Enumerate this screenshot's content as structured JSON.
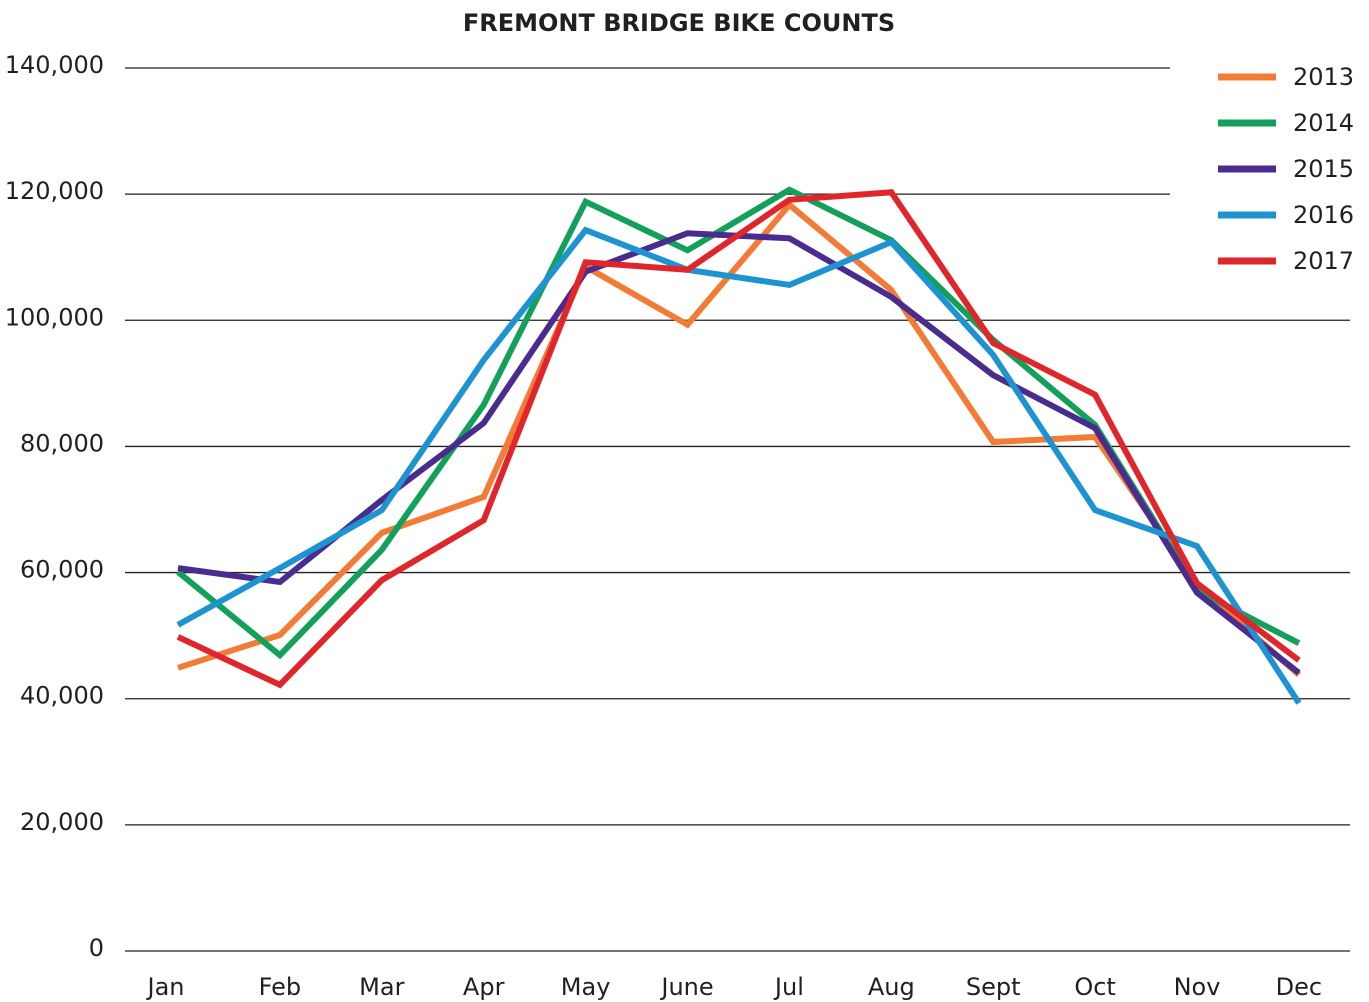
{
  "chart_data": {
    "type": "line",
    "title": "FREMONT BRIDGE BIKE COUNTS",
    "categories": [
      "Jan",
      "Feb",
      "Mar",
      "Apr",
      "May",
      "June",
      "Jul",
      "Aug",
      "Sept",
      "Oct",
      "Nov",
      "Dec"
    ],
    "series": [
      {
        "name": "2013",
        "color": "#f47b35",
        "values": [
          44900,
          50100,
          66300,
          72000,
          108500,
          99300,
          118300,
          104800,
          80700,
          81500,
          58000,
          43800
        ]
      },
      {
        "name": "2014",
        "color": "#13a05a",
        "values": [
          60100,
          46900,
          63600,
          86600,
          118800,
          111100,
          120700,
          112700,
          96900,
          83400,
          57200,
          48800
        ]
      },
      {
        "name": "2015",
        "color": "#4a2b8e",
        "values": [
          60700,
          58500,
          71500,
          83700,
          107700,
          113800,
          113000,
          103700,
          91300,
          82900,
          56800,
          44100
        ]
      },
      {
        "name": "2016",
        "color": "#1e93d2",
        "values": [
          51700,
          60700,
          69900,
          93700,
          114300,
          108000,
          105600,
          112400,
          94500,
          69900,
          64200,
          39300
        ]
      },
      {
        "name": "2017",
        "color": "#e0262b",
        "values": [
          49800,
          42200,
          58800,
          68300,
          109200,
          108000,
          119100,
          120300,
          96400,
          88200,
          58300,
          46100
        ]
      }
    ],
    "ylim": [
      0,
      140000
    ],
    "yticks": [
      0,
      {
        "value": 20000,
        "label": "20,000"
      },
      {
        "value": 40000,
        "label": "40,000"
      },
      {
        "value": 60000,
        "label": "60,000"
      },
      {
        "value": 80000,
        "label": "80,000"
      },
      {
        "value": 100000,
        "label": "100,000"
      },
      {
        "value": 120000,
        "label": "120,000"
      },
      {
        "value": 140000,
        "label": "140,000"
      }
    ],
    "grid": true,
    "legend": "top-right"
  }
}
